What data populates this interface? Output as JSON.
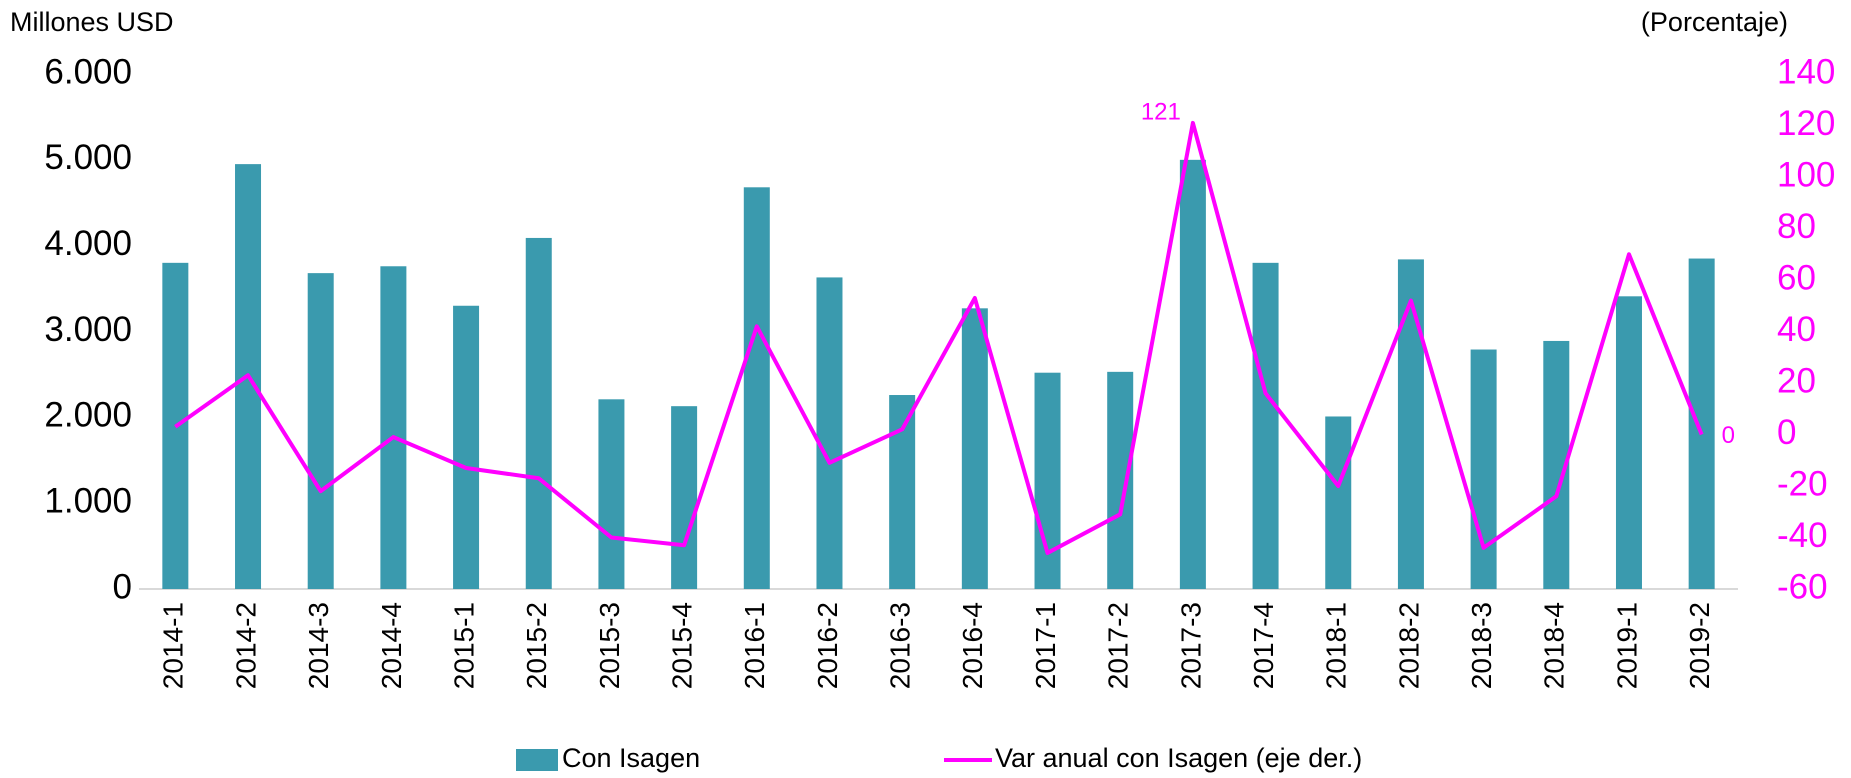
{
  "chart_data": {
    "type": "bar",
    "y_axis_title": "Millones USD",
    "y2_axis_title": "(Porcentaje)",
    "categories": [
      "2014-1",
      "2014-2",
      "2014-3",
      "2014-4",
      "2015-1",
      "2015-2",
      "2015-3",
      "2015-4",
      "2016-1",
      "2016-2",
      "2016-3",
      "2016-4",
      "2017-1",
      "2017-2",
      "2017-3",
      "2017-4",
      "2018-1",
      "2018-2",
      "2018-3",
      "2018-4",
      "2019-1",
      "2019-2"
    ],
    "series": [
      {
        "name": "Con Isagen",
        "type": "bar",
        "color": "#3a9aae",
        "values": [
          3800,
          4950,
          3680,
          3760,
          3300,
          4090,
          2210,
          2130,
          4680,
          3630,
          2260,
          3270,
          2520,
          2530,
          5000,
          3800,
          2010,
          3840,
          2790,
          2890,
          3410,
          3850
        ]
      },
      {
        "name": "Var anual con Isagen (eje der.)",
        "type": "line",
        "axis": "y2",
        "color": "#ff00ff",
        "values": [
          3,
          23,
          -22,
          -1,
          -13,
          -17,
          -40,
          -43,
          42,
          -11,
          2,
          53,
          -46,
          -31,
          121,
          16,
          -20,
          52,
          -44,
          -24,
          70,
          0
        ],
        "value_labels": [
          null,
          null,
          null,
          null,
          null,
          null,
          null,
          null,
          null,
          null,
          null,
          null,
          null,
          null,
          "121",
          null,
          null,
          null,
          null,
          null,
          null,
          "0"
        ]
      }
    ],
    "ylim": [
      0,
      6000
    ],
    "yticks": [
      {
        "value": 0,
        "label": "0"
      },
      {
        "value": 1000,
        "label": "1.000"
      },
      {
        "value": 2000,
        "label": "2.000"
      },
      {
        "value": 3000,
        "label": "3.000"
      },
      {
        "value": 4000,
        "label": "4.000"
      },
      {
        "value": 5000,
        "label": "5.000"
      },
      {
        "value": 6000,
        "label": "6.000"
      }
    ],
    "y2lim": [
      -60,
      140
    ],
    "y2ticks": [
      -60,
      -40,
      -20,
      0,
      20,
      40,
      60,
      80,
      100,
      120,
      140
    ],
    "legend": "bottom"
  }
}
